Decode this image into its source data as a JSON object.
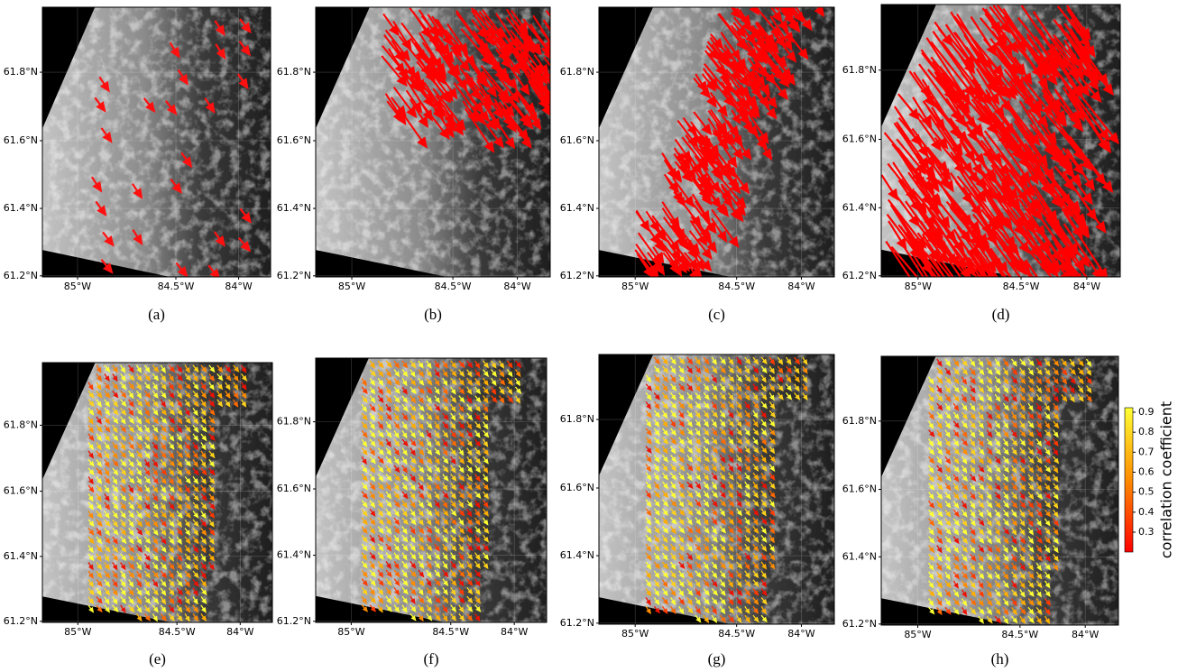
{
  "panels": [
    {
      "caption": "(a)"
    },
    {
      "caption": "(b)"
    },
    {
      "caption": "(c)"
    },
    {
      "caption": "(d)"
    },
    {
      "caption": "(e)"
    },
    {
      "caption": "(f)"
    },
    {
      "caption": "(g)"
    },
    {
      "caption": "(h)"
    }
  ],
  "axes": {
    "x_tick_labels": [
      "85°W",
      "84.5°W",
      "84°W"
    ],
    "y_tick_labels": [
      "61.2°N",
      "61.4°N",
      "61.6°N",
      "61.8°N"
    ]
  },
  "colorbar": {
    "label": "correlation coefficient",
    "tick_labels": [
      "0.3",
      "0.4",
      "0.5",
      "0.6",
      "0.7",
      "0.8",
      "0.9"
    ]
  }
}
